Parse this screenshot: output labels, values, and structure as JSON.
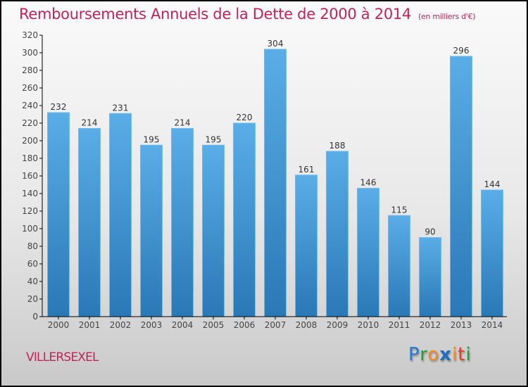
{
  "chart_data": {
    "type": "bar",
    "title": "Remboursements Annuels de la Dette de 2000 à 2014",
    "subtitle": "(en milliers d'€)",
    "xlabel": "",
    "ylabel": "",
    "categories": [
      "2000",
      "2001",
      "2002",
      "2003",
      "2004",
      "2005",
      "2006",
      "2007",
      "2008",
      "2009",
      "2010",
      "2011",
      "2012",
      "2013",
      "2014"
    ],
    "values": [
      232,
      214,
      231,
      195,
      214,
      195,
      220,
      304,
      161,
      188,
      146,
      115,
      90,
      296,
      144
    ],
    "ylim": [
      0,
      320
    ],
    "yticks": [
      0,
      20,
      40,
      60,
      80,
      100,
      120,
      140,
      160,
      180,
      200,
      220,
      240,
      260,
      280,
      300,
      320
    ],
    "grid": false,
    "legend": "none",
    "bar_color_top": "#5aade6",
    "bar_color_bottom": "#2a78b6"
  },
  "footer": {
    "commune": "VILLERSEXEL",
    "logo_letters": [
      {
        "ch": "P",
        "color": "#2a7bd0"
      },
      {
        "ch": "r",
        "color": "#2e9a3e"
      },
      {
        "ch": "o",
        "color": "#f28a1c"
      },
      {
        "ch": "x",
        "color": "#1e6fc4"
      },
      {
        "ch": "i",
        "color": "#f28a1c"
      },
      {
        "ch": "t",
        "color": "#e0402a"
      },
      {
        "ch": "i",
        "color": "#2e9a3e"
      }
    ]
  }
}
